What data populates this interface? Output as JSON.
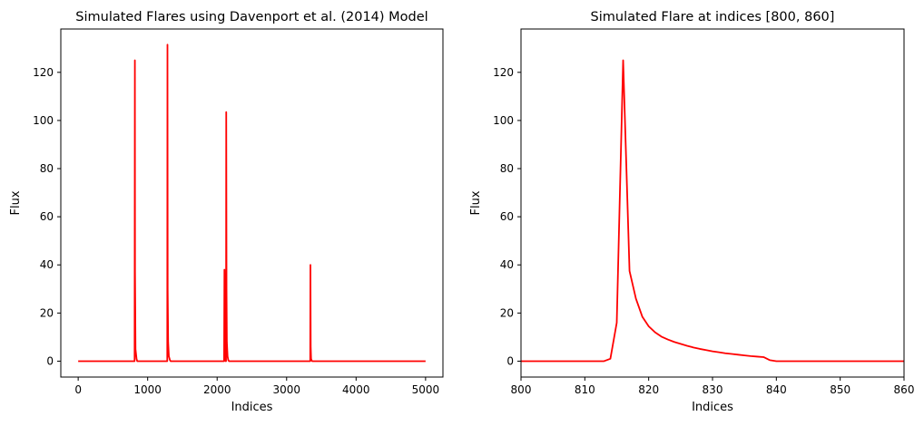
{
  "chart_data": [
    {
      "type": "line",
      "title": "Simulated Flares using Davenport et al. (2014) Model",
      "xlabel": "Indices",
      "ylabel": "Flux",
      "xlim": [
        -250,
        5250
      ],
      "ylim": [
        -6.6,
        138
      ],
      "xticks": [
        0,
        1000,
        2000,
        3000,
        4000,
        5000
      ],
      "yticks": [
        0,
        20,
        40,
        60,
        80,
        100,
        120
      ],
      "grid": false,
      "series": [
        {
          "color": "#ff0000",
          "x": [
            0,
            800,
            812,
            816,
            818,
            825,
            840,
            850,
            1270,
            1282,
            1285,
            1288,
            1295,
            1305,
            1320,
            1330,
            2095,
            2100,
            2105,
            2112,
            2118,
            2122,
            2128,
            2131,
            2135,
            2140,
            2150,
            2160,
            2170,
            3335,
            3340,
            3343,
            3347,
            3352,
            3360,
            3370,
            5000
          ],
          "y": [
            0,
            0,
            0,
            125,
            37,
            5,
            1,
            0,
            0,
            0,
            131.5,
            30,
            8,
            2,
            0.5,
            0,
            0,
            0,
            38,
            10,
            2,
            0,
            0,
            103.5,
            30,
            8,
            2,
            0.5,
            0,
            0,
            0,
            40,
            6,
            1,
            0.3,
            0,
            0
          ]
        }
      ]
    },
    {
      "type": "line",
      "title": "Simulated Flare at indices [800, 860]",
      "xlabel": "Indices",
      "ylabel": "Flux",
      "xlim": [
        800,
        860
      ],
      "ylim": [
        -6.6,
        138
      ],
      "xticks": [
        800,
        810,
        820,
        830,
        840,
        850,
        860
      ],
      "yticks": [
        0,
        20,
        40,
        60,
        80,
        100,
        120
      ],
      "grid": false,
      "series": [
        {
          "color": "#ff0000",
          "x": [
            800,
            813,
            814,
            815,
            816,
            817,
            818,
            819,
            820,
            821,
            822,
            823,
            824,
            825,
            826,
            827,
            828,
            829,
            830,
            831,
            832,
            833,
            834,
            835,
            836,
            837,
            838,
            839,
            840,
            860
          ],
          "y": [
            0,
            0,
            1,
            16,
            125,
            37.5,
            26,
            18.5,
            14.5,
            12,
            10.2,
            9,
            8,
            7.2,
            6.4,
            5.7,
            5.1,
            4.6,
            4.1,
            3.7,
            3.3,
            3.0,
            2.7,
            2.4,
            2.1,
            1.9,
            1.7,
            0.4,
            0,
            0
          ]
        }
      ]
    }
  ]
}
